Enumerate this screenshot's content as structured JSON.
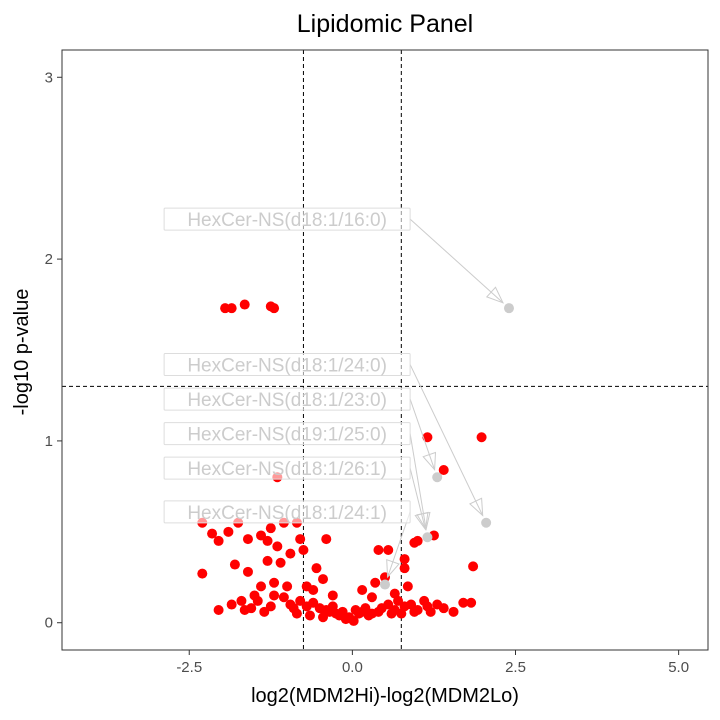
{
  "chart_data": {
    "type": "scatter",
    "title": "Lipidomic Panel",
    "xlabel": "log2(MDM2Hi)-log2(MDM2Lo)",
    "ylabel": "-log10 p-value",
    "xlim": [
      -4.45,
      5.45
    ],
    "ylim": [
      -0.15,
      3.15
    ],
    "xticks": [
      -2.5,
      0.0,
      2.5,
      5.0
    ],
    "xtick_labels": [
      "-2.5",
      "0.0",
      "2.5",
      "5.0"
    ],
    "yticks": [
      0,
      1,
      2,
      3
    ],
    "ytick_labels": [
      "0",
      "1",
      "2",
      "3"
    ],
    "thresholds": {
      "x": [
        -0.75,
        0.75
      ],
      "y": 1.3
    },
    "grid": false,
    "legend": "none",
    "colors": {
      "significant": "#ff0000",
      "labeled": "#cccccc",
      "label_text": "#cccccc",
      "threshold": "#000000"
    },
    "series": [
      {
        "color": "#ff0000",
        "points": [
          [
            -1.95,
            1.73
          ],
          [
            -1.85,
            1.73
          ],
          [
            -1.65,
            1.75
          ],
          [
            -1.25,
            1.74
          ],
          [
            -1.2,
            1.73
          ],
          [
            1.15,
            1.02
          ],
          [
            1.98,
            1.02
          ],
          [
            1.4,
            0.84
          ],
          [
            -1.15,
            0.8
          ],
          [
            1.25,
            0.48
          ],
          [
            1.0,
            0.45
          ],
          [
            0.95,
            0.44
          ],
          [
            1.85,
            0.31
          ],
          [
            0.8,
            0.3
          ],
          [
            -2.3,
            0.27
          ],
          [
            -2.05,
            0.07
          ],
          [
            1.3,
            0.1
          ],
          [
            1.4,
            0.08
          ],
          [
            1.55,
            0.06
          ],
          [
            1.7,
            0.11
          ],
          [
            1.82,
            0.11
          ],
          [
            -2.3,
            0.55
          ],
          [
            -2.15,
            0.49
          ],
          [
            -2.05,
            0.45
          ],
          [
            -1.9,
            0.5
          ],
          [
            -1.75,
            0.55
          ],
          [
            -1.6,
            0.46
          ],
          [
            -1.4,
            0.48
          ],
          [
            -1.25,
            0.52
          ],
          [
            -1.05,
            0.55
          ],
          [
            -0.85,
            0.55
          ],
          [
            -0.8,
            0.46
          ],
          [
            -0.4,
            0.46
          ],
          [
            -1.15,
            0.42
          ],
          [
            -0.95,
            0.38
          ],
          [
            -1.3,
            0.34
          ],
          [
            -1.1,
            0.33
          ],
          [
            -1.8,
            0.32
          ],
          [
            -0.75,
            0.4
          ],
          [
            -0.55,
            0.3
          ],
          [
            -0.45,
            0.24
          ],
          [
            0.1,
            0.05
          ],
          [
            -0.05,
            0.03
          ],
          [
            -0.2,
            0.04
          ],
          [
            -0.35,
            0.06
          ],
          [
            0.25,
            0.04
          ],
          [
            0.4,
            0.06
          ],
          [
            0.6,
            0.05
          ],
          [
            0.35,
            0.22
          ],
          [
            0.5,
            0.25
          ],
          [
            0.55,
            0.4
          ],
          [
            0.4,
            0.4
          ],
          [
            0.8,
            0.35
          ],
          [
            -1.6,
            0.28
          ],
          [
            -1.4,
            0.2
          ],
          [
            -1.2,
            0.22
          ],
          [
            -1.5,
            0.15
          ],
          [
            -1.7,
            0.12
          ],
          [
            -1.85,
            0.1
          ],
          [
            -1.55,
            0.08
          ],
          [
            -1.45,
            0.12
          ],
          [
            -1.25,
            0.09
          ],
          [
            -1.05,
            0.14
          ],
          [
            -0.95,
            0.1
          ],
          [
            -0.9,
            0.08
          ],
          [
            -0.8,
            0.12
          ],
          [
            -0.7,
            0.09
          ],
          [
            -0.6,
            0.11
          ],
          [
            -0.5,
            0.08
          ],
          [
            -0.4,
            0.07
          ],
          [
            -0.3,
            0.09
          ],
          [
            -0.25,
            0.05
          ],
          [
            -0.15,
            0.06
          ],
          [
            0.05,
            0.07
          ],
          [
            0.15,
            0.06
          ],
          [
            0.2,
            0.08
          ],
          [
            0.3,
            0.05
          ],
          [
            0.45,
            0.08
          ],
          [
            0.55,
            0.1
          ],
          [
            0.65,
            0.07
          ],
          [
            0.7,
            0.12
          ],
          [
            0.8,
            0.09
          ],
          [
            0.9,
            0.1
          ],
          [
            1.0,
            0.07
          ],
          [
            1.1,
            0.12
          ],
          [
            1.2,
            0.06
          ],
          [
            1.15,
            0.09
          ],
          [
            0.95,
            0.06
          ],
          [
            0.75,
            0.05
          ],
          [
            -1.35,
            0.06
          ],
          [
            -1.65,
            0.07
          ],
          [
            -0.85,
            0.05
          ],
          [
            -0.65,
            0.04
          ],
          [
            -0.45,
            0.03
          ],
          [
            -0.1,
            0.02
          ],
          [
            0.02,
            0.01
          ],
          [
            -0.3,
            0.15
          ],
          [
            -0.6,
            0.18
          ],
          [
            0.15,
            0.18
          ],
          [
            0.3,
            0.14
          ],
          [
            0.65,
            0.16
          ],
          [
            0.85,
            0.2
          ],
          [
            -1.3,
            0.45
          ],
          [
            -0.7,
            0.2
          ],
          [
            -1.0,
            0.2
          ],
          [
            -1.2,
            0.15
          ]
        ]
      },
      {
        "color": "#cccccc",
        "points": [
          [
            2.4,
            1.73
          ],
          [
            2.05,
            0.55
          ],
          [
            1.3,
            0.8
          ],
          [
            1.15,
            0.47
          ],
          [
            0.5,
            0.21
          ]
        ]
      }
    ],
    "annotations": [
      {
        "text": "HexCer-NS(d18:1/16:0)",
        "x": -1.0,
        "y": 2.22,
        "target": [
          2.4,
          1.73
        ]
      },
      {
        "text": "HexCer-NS(d18:1/24:0)",
        "x": -1.0,
        "y": 1.42,
        "target": [
          2.05,
          0.55
        ]
      },
      {
        "text": "HexCer-NS(d18:1/23:0)",
        "x": -1.0,
        "y": 1.23,
        "target": [
          1.3,
          0.8
        ]
      },
      {
        "text": "HexCer-NS(d19:1/25:0)",
        "x": -1.0,
        "y": 1.04,
        "target": [
          1.15,
          0.47
        ]
      },
      {
        "text": "HexCer-NS(d18:1/26:1)",
        "x": -1.0,
        "y": 0.85,
        "target": [
          1.15,
          0.47
        ]
      },
      {
        "text": "HexCer-NS(d18:1/24:1)",
        "x": -1.0,
        "y": 0.61,
        "target": [
          0.5,
          0.21
        ]
      }
    ]
  }
}
